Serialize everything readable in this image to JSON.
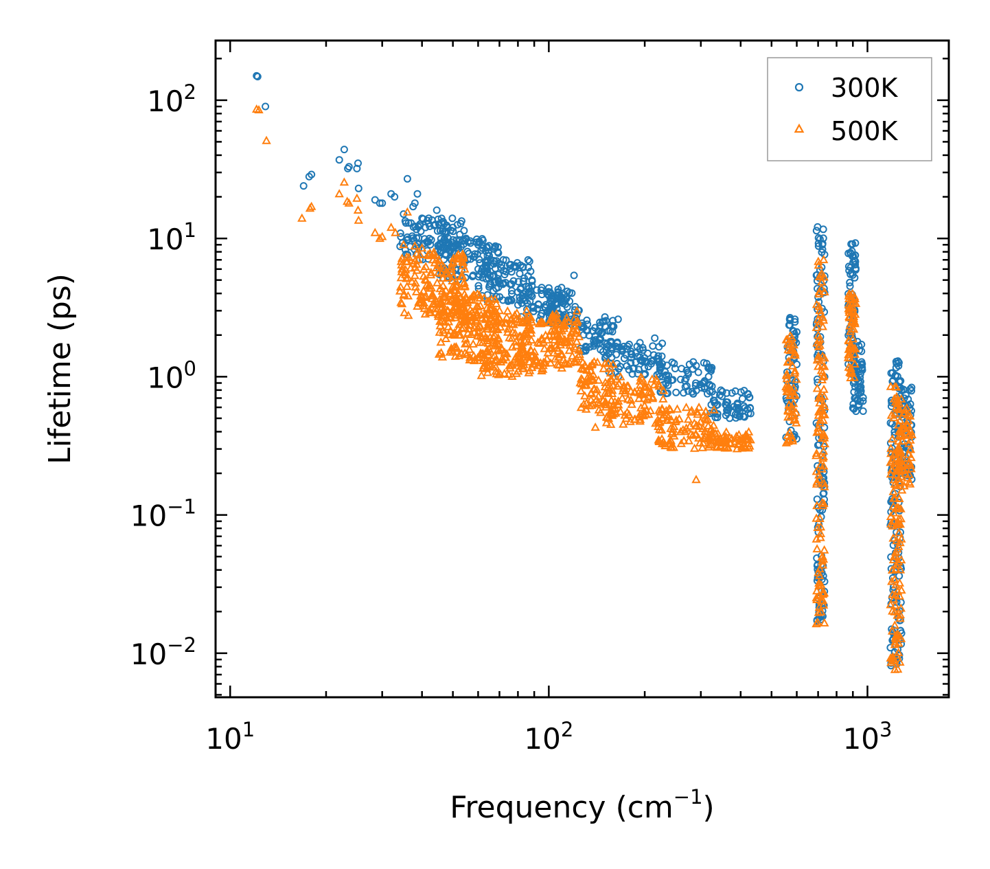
{
  "chart_data": {
    "type": "scatter",
    "title": "",
    "xlabel": "Frequency (cm",
    "xlabel_superscript": "−1",
    "xlabel_suffix": ")",
    "ylabel": "Lifetime (ps)",
    "xscale": "log",
    "yscale": "log",
    "xlim": [
      9,
      1800
    ],
    "ylim": [
      0.0048,
      270
    ],
    "xticks": [
      {
        "base": "10",
        "exp": "1",
        "value": 10
      },
      {
        "base": "10",
        "exp": "2",
        "value": 100
      },
      {
        "base": "10",
        "exp": "3",
        "value": 1000
      }
    ],
    "yticks": [
      {
        "base": "10",
        "exp": "2",
        "value": 100
      },
      {
        "base": "10",
        "exp": "1",
        "value": 10
      },
      {
        "base": "10",
        "exp": "0",
        "value": 1
      },
      {
        "base": "10",
        "exp": "−1",
        "value": 0.1
      },
      {
        "base": "10",
        "exp": "−2",
        "value": 0.01
      }
    ],
    "legend_position": "top-right",
    "grid": false,
    "series": [
      {
        "name": "300K",
        "marker": "circle",
        "color": "#1f77b4",
        "outliers": [
          [
            12.1,
            150
          ],
          [
            12.2,
            148
          ],
          [
            12.9,
            90
          ],
          [
            17,
            24
          ],
          [
            17.7,
            28
          ],
          [
            18,
            29
          ],
          [
            22,
            37
          ],
          [
            22.8,
            44
          ],
          [
            23.4,
            32
          ],
          [
            23.6,
            33
          ],
          [
            25,
            32
          ],
          [
            25.2,
            35
          ],
          [
            25.3,
            23
          ],
          [
            28.5,
            19
          ],
          [
            29.5,
            18
          ],
          [
            30,
            18
          ],
          [
            32,
            21
          ],
          [
            32.8,
            20
          ],
          [
            35,
            15
          ],
          [
            36,
            27
          ],
          [
            37.5,
            17
          ],
          [
            38,
            18
          ],
          [
            38.7,
            21
          ],
          [
            40,
            14
          ],
          [
            41,
            12
          ],
          [
            42,
            14
          ],
          [
            44.5,
            16
          ],
          [
            46,
            13
          ],
          [
            48,
            12
          ],
          [
            50,
            12
          ],
          [
            55,
            10
          ],
          [
            60,
            9
          ],
          [
            62,
            8.5
          ],
          [
            65,
            7.5
          ],
          [
            68,
            8.8
          ],
          [
            72,
            7
          ],
          [
            85,
            4.5
          ],
          [
            120,
            5.4
          ],
          [
            150,
            2.7
          ],
          [
            165,
            2.6
          ],
          [
            215,
            1.9
          ],
          [
            290,
            1.2
          ],
          [
            420,
            0.58
          ]
        ],
        "bands": [
          {
            "x": [
              34,
              55
            ],
            "y": [
              7,
              14
            ]
          },
          {
            "x": [
              45,
              70
            ],
            "y": [
              5,
              10
            ]
          },
          {
            "x": [
              60,
              90
            ],
            "y": [
              3.5,
              7
            ]
          },
          {
            "x": [
              80,
              110
            ],
            "y": [
              2.5,
              4.5
            ]
          },
          {
            "x": [
              100,
              125
            ],
            "y": [
              2.4,
              4.3
            ]
          },
          {
            "x": [
              125,
              160
            ],
            "y": [
              1.5,
              2.6
            ]
          },
          {
            "x": [
              150,
              230
            ],
            "y": [
              1.0,
              1.8
            ]
          },
          {
            "x": [
              220,
              330
            ],
            "y": [
              0.75,
              1.3
            ]
          },
          {
            "x": [
              320,
              430
            ],
            "y": [
              0.5,
              0.8
            ]
          },
          {
            "x": [
              555,
              600
            ],
            "y": [
              0.35,
              3.2
            ]
          },
          {
            "x": [
              690,
              735
            ],
            "y": [
              0.017,
              12.5
            ]
          },
          {
            "x": [
              870,
              920
            ],
            "y": [
              1.0,
              10.5
            ]
          },
          {
            "x": [
              900,
              970
            ],
            "y": [
              0.5,
              1.8
            ]
          },
          {
            "x": [
              1180,
              1280
            ],
            "y": [
              0.008,
              1.3
            ]
          },
          {
            "x": [
              1250,
              1380
            ],
            "y": [
              0.18,
              0.85
            ]
          }
        ]
      },
      {
        "name": "500K",
        "marker": "triangle",
        "color": "#ff7f0e",
        "outliers": [
          [
            12.1,
            86
          ],
          [
            12.3,
            85
          ],
          [
            13,
            51
          ],
          [
            16.8,
            14
          ],
          [
            17.8,
            16.5
          ],
          [
            18,
            17
          ],
          [
            22,
            21
          ],
          [
            22.8,
            25.5
          ],
          [
            23.3,
            18.5
          ],
          [
            23.6,
            18
          ],
          [
            25,
            19.5
          ],
          [
            25.2,
            16
          ],
          [
            25.3,
            13.5
          ],
          [
            28.5,
            11
          ],
          [
            29.5,
            10
          ],
          [
            30,
            10.3
          ],
          [
            32,
            12
          ],
          [
            33,
            11
          ],
          [
            35,
            9
          ],
          [
            36,
            15.5
          ],
          [
            38,
            8.8
          ],
          [
            40,
            8.5
          ],
          [
            42,
            7.5
          ],
          [
            45,
            6.5
          ],
          [
            48,
            5.6
          ],
          [
            50,
            4.5
          ],
          [
            55,
            3.4
          ],
          [
            60,
            3.2
          ],
          [
            65,
            3.5
          ],
          [
            70,
            3.0
          ],
          [
            85,
            2.5
          ],
          [
            95,
            1.1
          ],
          [
            120,
            2.6
          ],
          [
            140,
            0.43
          ],
          [
            170,
            0.7
          ],
          [
            290,
            0.18
          ],
          [
            420,
            0.35
          ]
        ],
        "bands": [
          {
            "x": [
              34,
              55
            ],
            "y": [
              2.5,
              8
            ]
          },
          {
            "x": [
              45,
              70
            ],
            "y": [
              1.3,
              4
            ]
          },
          {
            "x": [
              60,
              90
            ],
            "y": [
              1.0,
              3
            ]
          },
          {
            "x": [
              80,
              110
            ],
            "y": [
              1.1,
              2.5
            ]
          },
          {
            "x": [
              100,
              125
            ],
            "y": [
              1.2,
              3
            ]
          },
          {
            "x": [
              125,
              160
            ],
            "y": [
              0.55,
              1.3
            ]
          },
          {
            "x": [
              150,
              230
            ],
            "y": [
              0.45,
              1.0
            ]
          },
          {
            "x": [
              220,
              330
            ],
            "y": [
              0.3,
              0.6
            ]
          },
          {
            "x": [
              320,
              430
            ],
            "y": [
              0.3,
              0.4
            ]
          },
          {
            "x": [
              555,
              600
            ],
            "y": [
              0.33,
              2.2
            ]
          },
          {
            "x": [
              690,
              735
            ],
            "y": [
              0.016,
              7.5
            ]
          },
          {
            "x": [
              870,
              920
            ],
            "y": [
              0.95,
              4
            ]
          },
          {
            "x": [
              1180,
              1280
            ],
            "y": [
              0.0075,
              0.85
            ]
          },
          {
            "x": [
              1250,
              1380
            ],
            "y": [
              0.15,
              0.6
            ]
          }
        ]
      }
    ]
  }
}
